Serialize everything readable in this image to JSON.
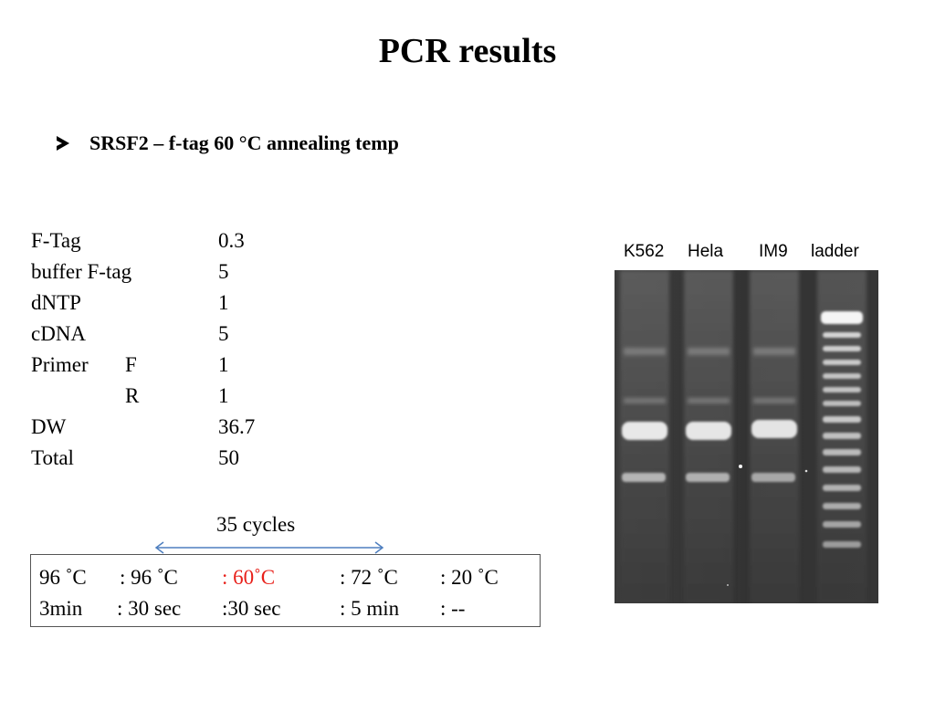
{
  "slide": {
    "title": "PCR results",
    "bullet": "SRSF2 – f-tag 60 °C annealing temp"
  },
  "reagents": [
    {
      "name": "F-Tag",
      "sub": "",
      "value": "0.3"
    },
    {
      "name": "buffer F-tag",
      "sub": "",
      "value": "5"
    },
    {
      "name": "dNTP",
      "sub": "",
      "value": "1"
    },
    {
      "name": "cDNA",
      "sub": "",
      "value": "5"
    },
    {
      "name": "Primer",
      "sub": "F",
      "value": "1"
    },
    {
      "name": "",
      "sub": "R",
      "value": "1"
    },
    {
      "name": "DW",
      "sub": "",
      "value": "36.7"
    },
    {
      "name": "Total",
      "sub": "",
      "value": "50"
    }
  ],
  "cycling": {
    "cycles_label": "35 cycles",
    "temps": [
      "96 ˚C",
      ": 96 ˚C",
      ": 60˚C",
      ": 72 ˚C",
      ": 20 ˚C"
    ],
    "times": [
      "3min",
      ": 30 sec",
      ":30 sec",
      ": 5 min",
      ": --"
    ],
    "highlight_color": "#e8201a",
    "arrow_color": "#4f7fbf"
  },
  "gel": {
    "lanes": [
      "K562",
      "Hela",
      "IM9",
      "ladder"
    ]
  }
}
